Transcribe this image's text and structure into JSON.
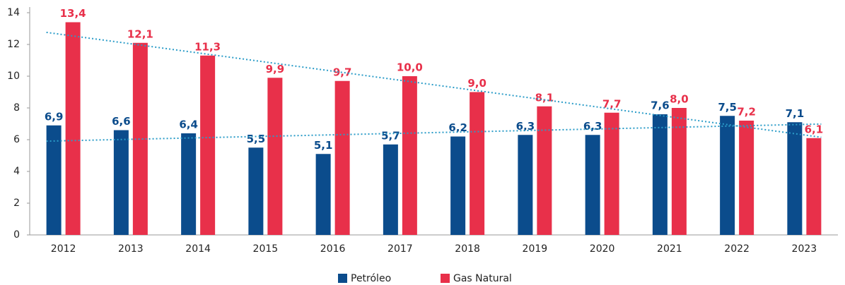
{
  "chart_data": {
    "type": "bar",
    "categories": [
      "2012",
      "2013",
      "2014",
      "2015",
      "2016",
      "2017",
      "2018",
      "2019",
      "2020",
      "2021",
      "2022",
      "2023"
    ],
    "series": [
      {
        "name": "Petróleo",
        "color": "#0b4c8c",
        "values": [
          6.9,
          6.6,
          6.4,
          5.5,
          5.1,
          5.7,
          6.2,
          6.3,
          6.3,
          7.6,
          7.5,
          7.1
        ],
        "value_labels": [
          "6,9",
          "6,6",
          "6,4",
          "5,5",
          "5,1",
          "5,7",
          "6,2",
          "6,3",
          "6,3",
          "7,6",
          "7,5",
          "7,1"
        ]
      },
      {
        "name": "Gas Natural",
        "color": "#e8304a",
        "values": [
          13.4,
          12.1,
          11.3,
          9.9,
          9.7,
          10.0,
          9.0,
          8.1,
          7.7,
          8.0,
          7.2,
          6.1
        ],
        "value_labels": [
          "13,4",
          "12,1",
          "11,3",
          "9,9",
          "9,7",
          "10,0",
          "9,0",
          "8,1",
          "7,7",
          "8,0",
          "7,2",
          "6,1"
        ]
      }
    ],
    "ylim": [
      0,
      14
    ],
    "yticks": [
      0,
      2,
      4,
      6,
      8,
      10,
      12,
      14
    ],
    "grid": false,
    "trendline": true,
    "trendline_color": "#2b9cc8",
    "legend": "bottom"
  }
}
